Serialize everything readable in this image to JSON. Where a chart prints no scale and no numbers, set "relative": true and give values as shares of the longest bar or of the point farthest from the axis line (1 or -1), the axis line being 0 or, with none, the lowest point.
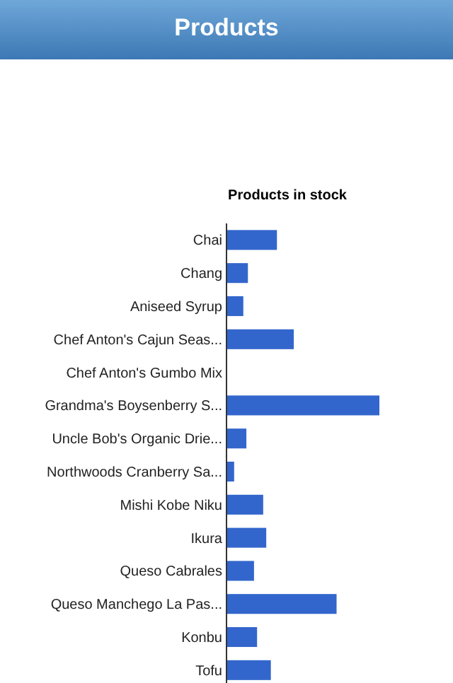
{
  "chart_data": {
    "type": "bar",
    "orientation": "horizontal",
    "relative": true,
    "title": "Products",
    "subtitle": "Products in stock",
    "categories": [
      "Chai",
      "Chang",
      "Aniseed Syrup",
      "Chef Anton's Cajun Seas...",
      "Chef Anton's Gumbo Mix",
      "Grandma's Boysenberry S...",
      "Uncle Bob's Organic Drie...",
      "Northwoods Cranberry Sa...",
      "Mishi Kobe Niku",
      "Ikura",
      "Queso Cabrales",
      "Queso Manchego La Pas...",
      "Konbu",
      "Tofu"
    ],
    "values": [
      0.33,
      0.14,
      0.11,
      0.44,
      0,
      1,
      0.13,
      0.05,
      0.24,
      0.26,
      0.18,
      0.72,
      0.2,
      0.29
    ],
    "color": "#3366cc"
  }
}
